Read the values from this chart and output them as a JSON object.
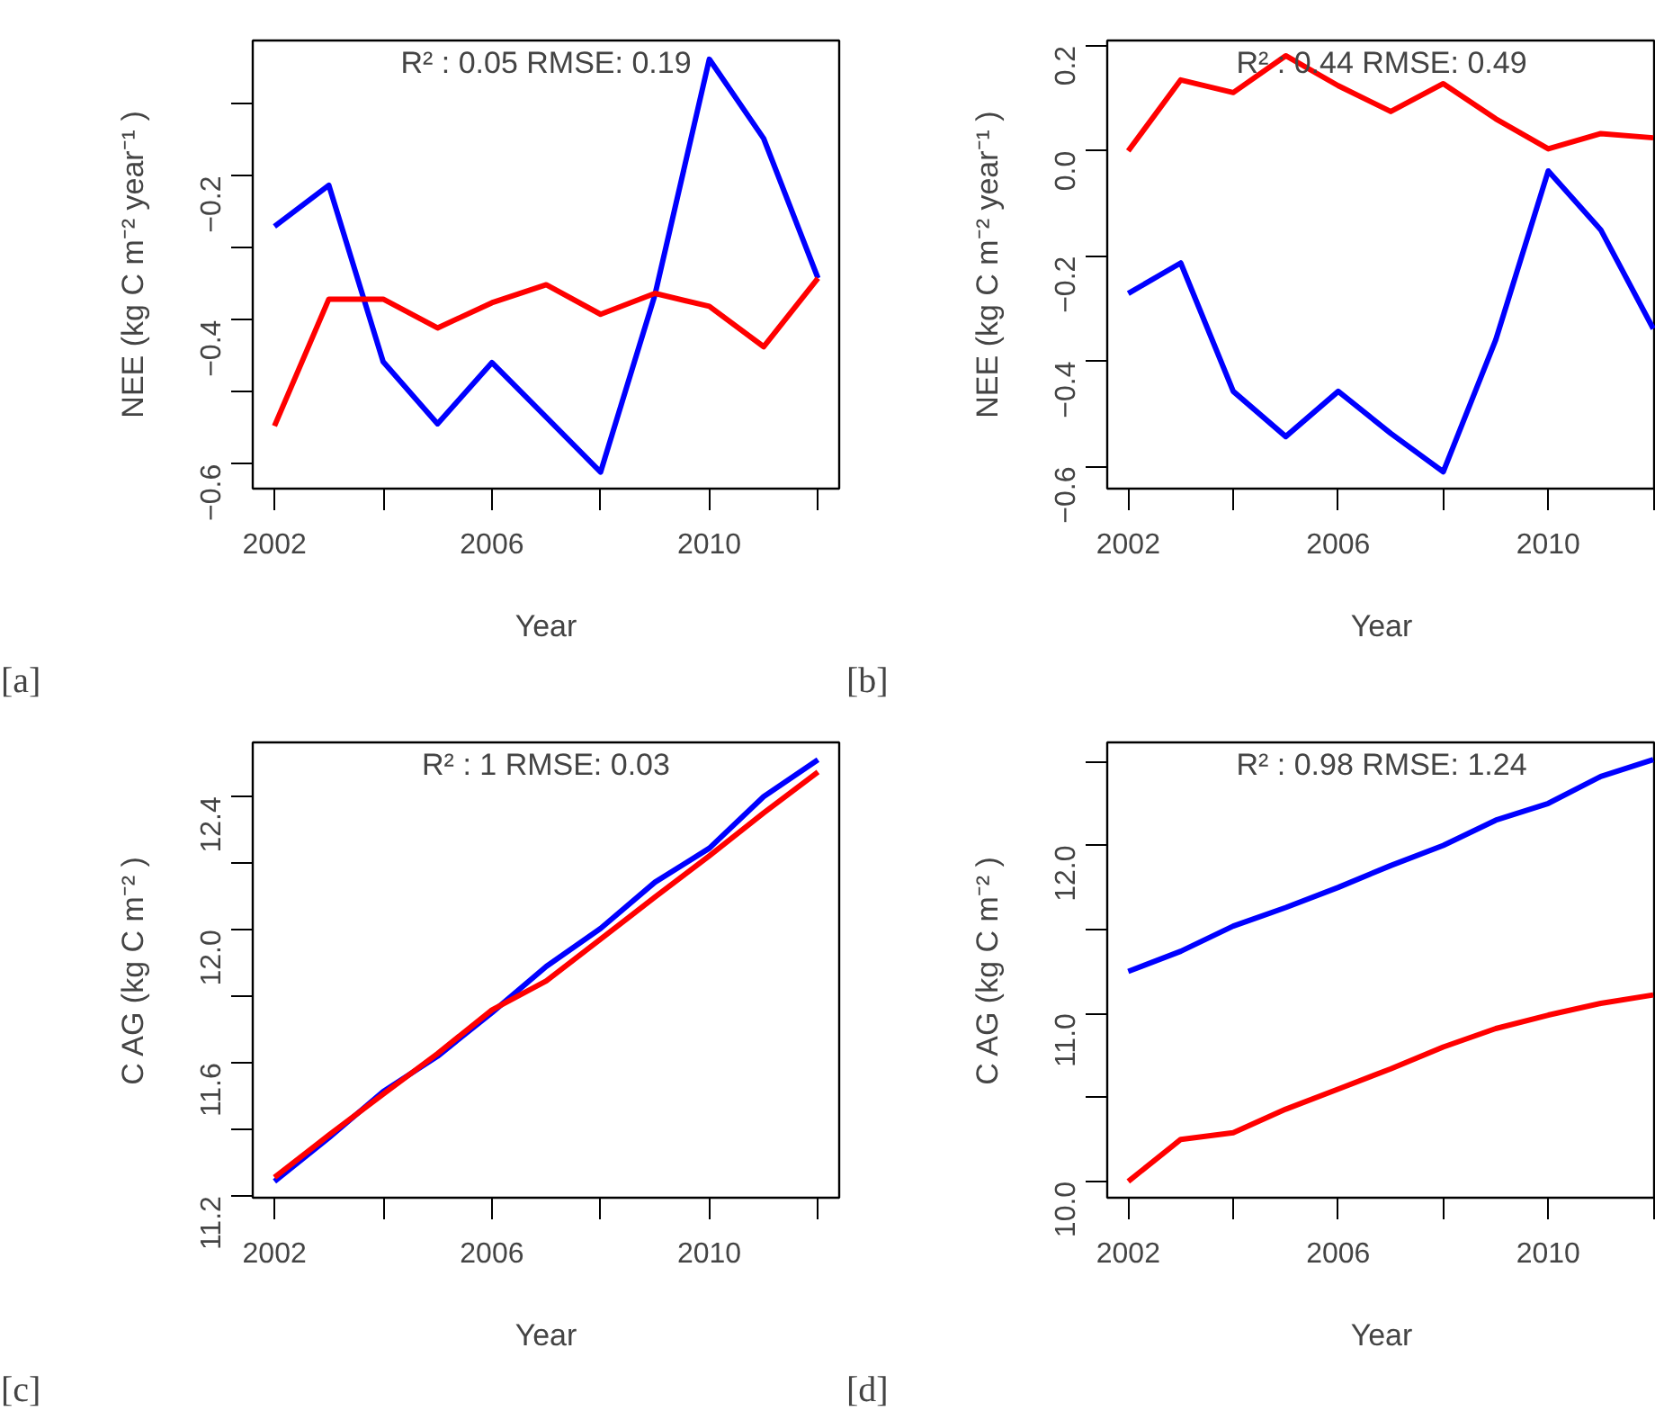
{
  "chart_data": [
    {
      "type": "line",
      "xlabel": "Year",
      "ylabel": "NEE (kg C m⁻² year⁻¹ )",
      "annotations": [
        "R² : 0.05 RMSE: 0.19",
        "[a]"
      ],
      "x": [
        2002,
        2003,
        2004,
        2005,
        2006,
        2007,
        2008,
        2009,
        2010,
        2011,
        2012
      ],
      "xlim": [
        2001.6,
        2012.39
      ],
      "xticks": [
        2002,
        {
          "value": 2004,
          "label": null
        },
        {
          "value": 2006,
          "label": "2006"
        },
        {
          "value": 2008,
          "label": null
        },
        2010,
        {
          "value": 2012,
          "label": null
        }
      ],
      "ylim": [
        -0.634,
        -0.012
      ],
      "yticks": [
        {
          "value": -0.6,
          "label": "−0.6"
        },
        {
          "value": -0.5,
          "label": null
        },
        {
          "value": -0.4,
          "label": "−0.4"
        },
        {
          "value": -0.3,
          "label": null
        },
        {
          "value": -0.2,
          "label": "−0.2"
        },
        {
          "value": -0.1,
          "label": null
        }
      ],
      "grid": false,
      "series": [
        {
          "color": "#0000ff",
          "values": [
            -0.27,
            -0.213,
            -0.458,
            -0.544,
            -0.459,
            -0.535,
            -0.611,
            -0.365,
            -0.038,
            -0.148,
            -0.342
          ]
        },
        {
          "color": "#ff0000",
          "values": [
            -0.547,
            -0.371,
            -0.371,
            -0.411,
            -0.376,
            -0.351,
            -0.392,
            -0.363,
            -0.381,
            -0.437,
            -0.342
          ]
        }
      ]
    },
    {
      "type": "line",
      "xlabel": "Year",
      "ylabel": "NEE (kg C m⁻² year⁻¹ )",
      "annotations": [
        "R² : 0.44 RMSE: 0.49",
        "[b]"
      ],
      "x": [
        2002,
        2003,
        2004,
        2005,
        2006,
        2007,
        2008,
        2009,
        2010,
        2011,
        2012
      ],
      "xlim": [
        2001.6,
        2012.05
      ],
      "xticks": [
        2002,
        {
          "value": 2004,
          "label": null
        },
        2006,
        {
          "value": 2008,
          "label": null
        },
        2010,
        {
          "value": 2012,
          "label": null
        }
      ],
      "ylim": [
        -0.642,
        0.21
      ],
      "yticks": [
        {
          "value": -0.6,
          "label": "−0.6"
        },
        {
          "value": -0.4,
          "label": "−0.4"
        },
        {
          "value": -0.2,
          "label": "−0.2"
        },
        {
          "value": 0,
          "label": "0.0"
        },
        0.2
      ],
      "grid": false,
      "series": [
        {
          "color": "#ff0000",
          "values": [
            0.0,
            0.135,
            0.111,
            0.181,
            0.124,
            0.075,
            0.128,
            0.061,
            0.004,
            0.033,
            0.025
          ]
        },
        {
          "color": "#0000ff",
          "values": [
            -0.271,
            -0.213,
            -0.457,
            -0.543,
            -0.457,
            -0.537,
            -0.61,
            -0.359,
            -0.038,
            -0.15,
            -0.338
          ]
        }
      ]
    },
    {
      "type": "line",
      "xlabel": "Year",
      "ylabel": "C AG (kg C m⁻² )",
      "annotations": [
        "R² : 1 RMSE: 0.03",
        "[c]"
      ],
      "x": [
        2002,
        2003,
        2004,
        2005,
        2006,
        2007,
        2008,
        2009,
        2010,
        2011,
        2012
      ],
      "xlim": [
        2001.6,
        2012.39
      ],
      "xticks": [
        2002,
        {
          "value": 2004,
          "label": null
        },
        2006,
        {
          "value": 2008,
          "label": null
        },
        2010,
        {
          "value": 2012,
          "label": null
        }
      ],
      "ylim": [
        11.195,
        12.563
      ],
      "yticks": [
        11.2,
        {
          "value": 11.4,
          "label": null
        },
        11.6,
        {
          "value": 11.8,
          "label": null
        },
        {
          "value": 12,
          "label": "12.0"
        },
        {
          "value": 12.2,
          "label": null
        },
        12.4
      ],
      "grid": false,
      "series": [
        {
          "color": "#0000ff",
          "values": [
            11.244,
            11.375,
            11.514,
            11.62,
            11.751,
            11.89,
            12.004,
            12.143,
            12.245,
            12.4,
            12.511
          ]
        },
        {
          "color": "#ff0000",
          "values": [
            11.256,
            11.383,
            11.506,
            11.628,
            11.759,
            11.846,
            11.972,
            12.098,
            12.222,
            12.351,
            12.474
          ]
        }
      ]
    },
    {
      "type": "line",
      "xlabel": "Year",
      "ylabel": "C AG (kg C m⁻² )",
      "annotations": [
        "R² : 0.98 RMSE: 1.24",
        "[d]"
      ],
      "x": [
        2002,
        2003,
        2004,
        2005,
        2006,
        2007,
        2008,
        2009,
        2010,
        2011,
        2012
      ],
      "xlim": [
        2001.6,
        2012.05
      ],
      "xticks": [
        2002,
        {
          "value": 2004,
          "label": null
        },
        2006,
        {
          "value": 2008,
          "label": null
        },
        2010,
        {
          "value": 2012,
          "label": null
        }
      ],
      "ylim": [
        9.903,
        12.613
      ],
      "yticks": [
        {
          "value": 10,
          "label": "10.0"
        },
        {
          "value": 10.5,
          "label": null
        },
        {
          "value": 11,
          "label": "11.0"
        },
        {
          "value": 11.5,
          "label": null
        },
        {
          "value": 12,
          "label": "12.0"
        },
        {
          "value": 12.5,
          "label": null
        }
      ],
      "grid": false,
      "series": [
        {
          "color": "#0000ff",
          "values": [
            11.25,
            11.37,
            11.52,
            11.63,
            11.75,
            11.88,
            12.0,
            12.15,
            12.25,
            12.41,
            12.51
          ]
        },
        {
          "color": "#ff0000",
          "values": [
            10.0,
            10.25,
            10.29,
            10.43,
            10.55,
            10.67,
            10.8,
            10.91,
            10.99,
            11.06,
            11.11
          ]
        }
      ]
    }
  ]
}
